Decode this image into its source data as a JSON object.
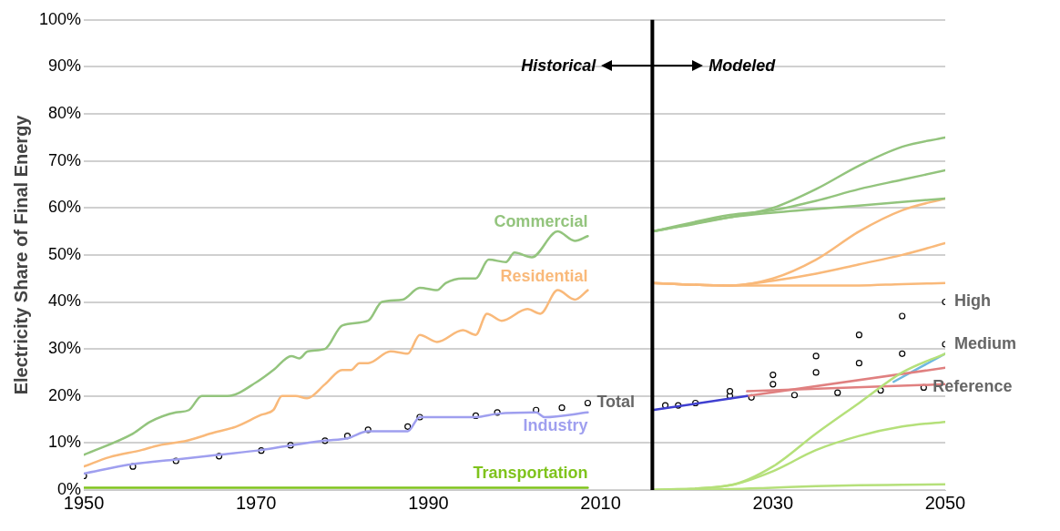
{
  "chart_data": {
    "type": "line",
    "ylabel": "Electricity Share of Final Energy",
    "xlim": [
      1950,
      2050
    ],
    "xticks": [
      1950,
      1970,
      1990,
      2010,
      2030,
      2050
    ],
    "ylim": [
      0,
      100
    ],
    "yticks": [
      {
        "value": 0,
        "label": "0%"
      },
      {
        "value": 10,
        "label": "10%"
      },
      {
        "value": 20,
        "label": "20%"
      },
      {
        "value": 30,
        "label": "30%"
      },
      {
        "value": 40,
        "label": "40%"
      },
      {
        "value": 50,
        "label": "50%"
      },
      {
        "value": 60,
        "label": "60%"
      },
      {
        "value": 70,
        "label": "70%"
      },
      {
        "value": 80,
        "label": "80%"
      },
      {
        "value": 90,
        "label": "90%"
      },
      {
        "value": 100,
        "label": "100%"
      }
    ],
    "grid": "y",
    "legend": false,
    "ref_lines": [
      {
        "axis": "x",
        "value": 2016,
        "color": "#000000"
      }
    ],
    "annotations": [
      "Historical",
      "Modeled"
    ],
    "series": [
      {
        "name": "Commercial",
        "color": "#93c47d",
        "x": [
          1950,
          1955.7,
          1957.7,
          1960.7,
          1962.2,
          1963.7,
          1966.7,
          1970.1,
          1972,
          1974.1,
          1975,
          1976,
          1978,
          1980,
          1983,
          1984.6,
          1987,
          1989,
          1991,
          1992,
          1994,
          1995.5,
          1997,
          1999,
          2000,
          2002,
          2005,
          2007,
          2008.5
        ],
        "values": [
          7.5,
          12,
          14.5,
          16.5,
          17,
          20,
          20,
          23,
          25.5,
          28.5,
          28,
          29.5,
          30,
          35,
          36,
          40,
          40.5,
          43,
          42.5,
          44,
          45,
          45,
          49,
          48.5,
          50.5,
          49.5,
          55,
          53,
          54
        ]
      },
      {
        "name": "Residential",
        "color": "#f9b97a",
        "x": [
          1950,
          1953,
          1956.7,
          1958.7,
          1962,
          1964.7,
          1967.7,
          1970.6,
          1972,
          1973,
          1974.6,
          1975.9,
          1978,
          1980,
          1981,
          1982,
          1983,
          1985.6,
          1987.6,
          1989,
          1991,
          1994,
          1995.5,
          1996.8,
          1998.5,
          2001.5,
          2003,
          2005,
          2007,
          2008.5
        ],
        "values": [
          5,
          7,
          8.5,
          9.5,
          10.5,
          12,
          13.5,
          16,
          17,
          20,
          20,
          19.5,
          22.5,
          25.5,
          25.5,
          27,
          27,
          29.5,
          29,
          33,
          31.5,
          34,
          33,
          37.5,
          36,
          38.5,
          37.5,
          42.5,
          40.5,
          42.5
        ]
      },
      {
        "name": "Industry",
        "color": "#9f9fef",
        "x": [
          1950,
          1955.7,
          1960.7,
          1965.7,
          1970.6,
          1974,
          1978,
          1980.6,
          1983,
          1987.6,
          1989,
          1995.5,
          1998,
          2002.5,
          2003.5,
          2008.5
        ],
        "values": [
          3.5,
          5.5,
          6.5,
          7.5,
          8.5,
          9.5,
          10.5,
          11,
          12.5,
          12.5,
          15.5,
          15.5,
          16.2,
          16.5,
          15.5,
          16.5
        ]
      },
      {
        "name": "Transportation",
        "color": "#7fc31c",
        "x": [
          1950,
          2008.5
        ],
        "values": [
          0.5,
          0.5
        ]
      },
      {
        "name": "Total",
        "type": "scatter",
        "color": "#000000",
        "marker": "circle",
        "x": [
          1950,
          1955.7,
          1960.7,
          1965.7,
          1970.6,
          1974,
          1978,
          1980.6,
          1983,
          1987.6,
          1989,
          1995.5,
          1998,
          2002.5,
          2005.5,
          2008.5
        ],
        "values": [
          3,
          5,
          6.2,
          7.2,
          8.4,
          9.5,
          10.5,
          11.5,
          12.8,
          13.5,
          15.5,
          15.8,
          16.5,
          17,
          17.5,
          18.5
        ]
      },
      {
        "color": "#93c47d",
        "x": [
          2016,
          2025,
          2030,
          2035,
          2040,
          2045,
          2050
        ],
        "values": [
          55,
          58,
          60,
          64,
          69,
          73,
          75
        ]
      },
      {
        "color": "#93c47d",
        "x": [
          2016,
          2025,
          2030,
          2035,
          2040,
          2045,
          2050
        ],
        "values": [
          55,
          58.5,
          59.5,
          61.5,
          64,
          66,
          68
        ]
      },
      {
        "color": "#93c47d",
        "x": [
          2016,
          2025,
          2030,
          2040,
          2050
        ],
        "values": [
          55,
          58,
          59,
          60.5,
          62
        ]
      },
      {
        "color": "#f9b97a",
        "x": [
          2016,
          2025,
          2030,
          2035,
          2040,
          2045,
          2050
        ],
        "values": [
          44,
          43.5,
          45,
          49,
          55,
          59.5,
          62
        ]
      },
      {
        "color": "#f9b97a",
        "x": [
          2016,
          2025,
          2030,
          2035,
          2040,
          2045,
          2050
        ],
        "values": [
          44,
          43.5,
          44.5,
          46,
          48,
          50,
          52.5
        ]
      },
      {
        "color": "#f9b97a",
        "x": [
          2016,
          2025,
          2030,
          2035,
          2040,
          2045,
          2050
        ],
        "values": [
          44,
          43.5,
          43.5,
          43.5,
          43.5,
          43.8,
          44
        ]
      },
      {
        "color": "#b5e07a",
        "x": [
          2016,
          2025,
          2030,
          2035,
          2040,
          2045,
          2050
        ],
        "values": [
          0,
          1,
          5,
          12,
          18.5,
          25,
          29
        ]
      },
      {
        "color": "#b5e07a",
        "x": [
          2016,
          2025,
          2030,
          2035,
          2040,
          2045,
          2050
        ],
        "values": [
          0,
          1,
          4,
          8.5,
          11.5,
          13.5,
          14.5
        ]
      },
      {
        "color": "#b5e07a",
        "x": [
          2016,
          2025,
          2030,
          2035,
          2040,
          2045,
          2050
        ],
        "values": [
          0,
          0.2,
          0.5,
          0.8,
          1,
          1.1,
          1.2
        ]
      },
      {
        "color": "#3f3fd0",
        "x": [
          2016,
          2027
        ],
        "values": [
          17,
          20
        ]
      },
      {
        "color": "#e08080",
        "x": [
          2027,
          2050
        ],
        "values": [
          20,
          26
        ]
      },
      {
        "color": "#e08080",
        "x": [
          2027,
          2050
        ],
        "values": [
          21,
          22.5
        ]
      },
      {
        "color": "#6fb8e0",
        "x": [
          2044,
          2050
        ],
        "values": [
          23,
          29
        ]
      },
      {
        "name": "High",
        "type": "scatter",
        "color": "#000000",
        "marker": "circle",
        "x": [
          2017.5,
          2025,
          2030,
          2035,
          2040,
          2045,
          2050
        ],
        "values": [
          18,
          21,
          24.5,
          28.5,
          33,
          37,
          40
        ]
      },
      {
        "name": "Medium",
        "type": "scatter",
        "color": "#000000",
        "marker": "circle",
        "x": [
          2019,
          2025,
          2030,
          2035,
          2040,
          2045,
          2050
        ],
        "values": [
          18,
          20,
          22.5,
          25,
          27,
          29,
          31
        ]
      },
      {
        "name": "Reference",
        "type": "scatter",
        "color": "#000000",
        "marker": "circle",
        "x": [
          2021,
          2027.5,
          2032.5,
          2037.5,
          2042.5,
          2047.5
        ],
        "values": [
          18.5,
          19.7,
          20.2,
          20.7,
          21.2,
          21.8
        ]
      }
    ]
  }
}
